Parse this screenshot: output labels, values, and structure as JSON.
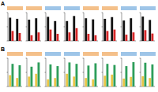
{
  "chart_data": [
    {
      "type": "bar",
      "title": "A",
      "categories": [
        null,
        null
      ],
      "series": [
        {
          "color": "#111111",
          "values": [
            82,
            78
          ]
        },
        {
          "color": "#d62728",
          "values": [
            35,
            28
          ]
        }
      ],
      "ylim": [
        0,
        100
      ],
      "yticks": [
        0,
        50,
        100
      ],
      "tick_labels": false
    },
    {
      "type": "bar",
      "categories": [
        null,
        null
      ],
      "series": [
        {
          "color": "#111111",
          "values": [
            75,
            80
          ]
        },
        {
          "color": "#d62728",
          "values": [
            20,
            30
          ]
        }
      ],
      "ylim": [
        0,
        100
      ],
      "yticks": [
        0,
        50,
        100
      ],
      "tick_labels": false
    },
    {
      "type": "bar",
      "categories": [
        null,
        null
      ],
      "series": [
        {
          "color": "#111111",
          "values": [
            85,
            70
          ]
        },
        {
          "color": "#d62728",
          "values": [
            40,
            25
          ]
        }
      ],
      "ylim": [
        0,
        100
      ],
      "yticks": [
        0,
        50,
        100
      ],
      "tick_labels": false
    },
    {
      "type": "bar",
      "categories": [
        null,
        null
      ],
      "series": [
        {
          "color": "#111111",
          "values": [
            70,
            88
          ]
        },
        {
          "color": "#d62728",
          "values": [
            30,
            45
          ]
        }
      ],
      "ylim": [
        0,
        100
      ],
      "yticks": [
        0,
        50,
        100
      ],
      "tick_labels": false
    },
    {
      "type": "bar",
      "categories": [
        null,
        null
      ],
      "series": [
        {
          "color": "#111111",
          "values": [
            80,
            76
          ]
        },
        {
          "color": "#d62728",
          "values": [
            25,
            20
          ]
        }
      ],
      "ylim": [
        0,
        100
      ],
      "yticks": [
        0,
        50,
        100
      ],
      "tick_labels": false
    },
    {
      "type": "bar",
      "categories": [
        null,
        null
      ],
      "series": [
        {
          "color": "#111111",
          "values": [
            78,
            84
          ]
        },
        {
          "color": "#d62728",
          "values": [
            35,
            40
          ]
        }
      ],
      "ylim": [
        0,
        100
      ],
      "yticks": [
        0,
        50,
        100
      ],
      "tick_labels": false
    },
    {
      "type": "bar",
      "categories": [
        null,
        null
      ],
      "series": [
        {
          "color": "#111111",
          "values": [
            72,
            80
          ]
        },
        {
          "color": "#d62728",
          "values": [
            22,
            30
          ]
        }
      ],
      "ylim": [
        0,
        100
      ],
      "yticks": [
        0,
        50,
        100
      ],
      "tick_labels": false
    },
    {
      "type": "bar",
      "categories": [
        null,
        null
      ],
      "series": [
        {
          "color": "#111111",
          "values": [
            86,
            74
          ]
        },
        {
          "color": "#d62728",
          "values": [
            38,
            26
          ]
        }
      ],
      "ylim": [
        0,
        100
      ],
      "yticks": [
        0,
        50,
        100
      ],
      "tick_labels": false
    },
    {
      "type": "bar",
      "title": "B",
      "categories": [
        null,
        null
      ],
      "series": [
        {
          "color": "#e8c547",
          "values": [
            40,
            30
          ]
        },
        {
          "color": "#2e9e5b",
          "values": [
            80,
            75
          ]
        }
      ],
      "ylim": [
        0,
        100
      ],
      "yticks": [
        0,
        50,
        100
      ],
      "tick_labels": false
    },
    {
      "type": "bar",
      "categories": [
        null,
        null
      ],
      "series": [
        {
          "color": "#e8c547",
          "values": [
            35,
            45
          ]
        },
        {
          "color": "#2e9e5b",
          "values": [
            70,
            85
          ]
        }
      ],
      "ylim": [
        0,
        100
      ],
      "yticks": [
        0,
        50,
        100
      ],
      "tick_labels": false
    },
    {
      "type": "bar",
      "categories": [
        null,
        null
      ],
      "series": [
        {
          "color": "#e8c547",
          "values": [
            25,
            30
          ]
        },
        {
          "color": "#2e9e5b",
          "values": [
            78,
            72
          ]
        }
      ],
      "ylim": [
        0,
        100
      ],
      "yticks": [
        0,
        50,
        100
      ],
      "tick_labels": false
    },
    {
      "type": "bar",
      "categories": [
        null,
        null
      ],
      "series": [
        {
          "color": "#e8c547",
          "values": [
            45,
            35
          ]
        },
        {
          "color": "#2e9e5b",
          "values": [
            85,
            80
          ]
        }
      ],
      "ylim": [
        0,
        100
      ],
      "yticks": [
        0,
        50,
        100
      ],
      "tick_labels": false
    },
    {
      "type": "bar",
      "categories": [
        null,
        null
      ],
      "series": [
        {
          "color": "#e8c547",
          "values": [
            30,
            25
          ]
        },
        {
          "color": "#2e9e5b",
          "values": [
            74,
            82
          ]
        }
      ],
      "ylim": [
        0,
        100
      ],
      "yticks": [
        0,
        50,
        100
      ],
      "tick_labels": false
    },
    {
      "type": "bar",
      "categories": [
        null,
        null
      ],
      "series": [
        {
          "color": "#e8c547",
          "values": [
            38,
            42
          ]
        },
        {
          "color": "#2e9e5b",
          "values": [
            80,
            76
          ]
        }
      ],
      "ylim": [
        0,
        100
      ],
      "yticks": [
        0,
        50,
        100
      ],
      "tick_labels": false
    },
    {
      "type": "bar",
      "categories": [
        null,
        null
      ],
      "series": [
        {
          "color": "#e8c547",
          "values": [
            28,
            34
          ]
        },
        {
          "color": "#2e9e5b",
          "values": [
            72,
            86
          ]
        }
      ],
      "ylim": [
        0,
        100
      ],
      "yticks": [
        0,
        50,
        100
      ],
      "tick_labels": false
    },
    {
      "type": "bar",
      "categories": [
        null,
        null
      ],
      "series": [
        {
          "color": "#e8c547",
          "values": [
            36,
            30
          ]
        },
        {
          "color": "#2e9e5b",
          "values": [
            84,
            78
          ]
        }
      ],
      "ylim": [
        0,
        100
      ],
      "yticks": [
        0,
        50,
        100
      ],
      "tick_labels": false
    }
  ]
}
